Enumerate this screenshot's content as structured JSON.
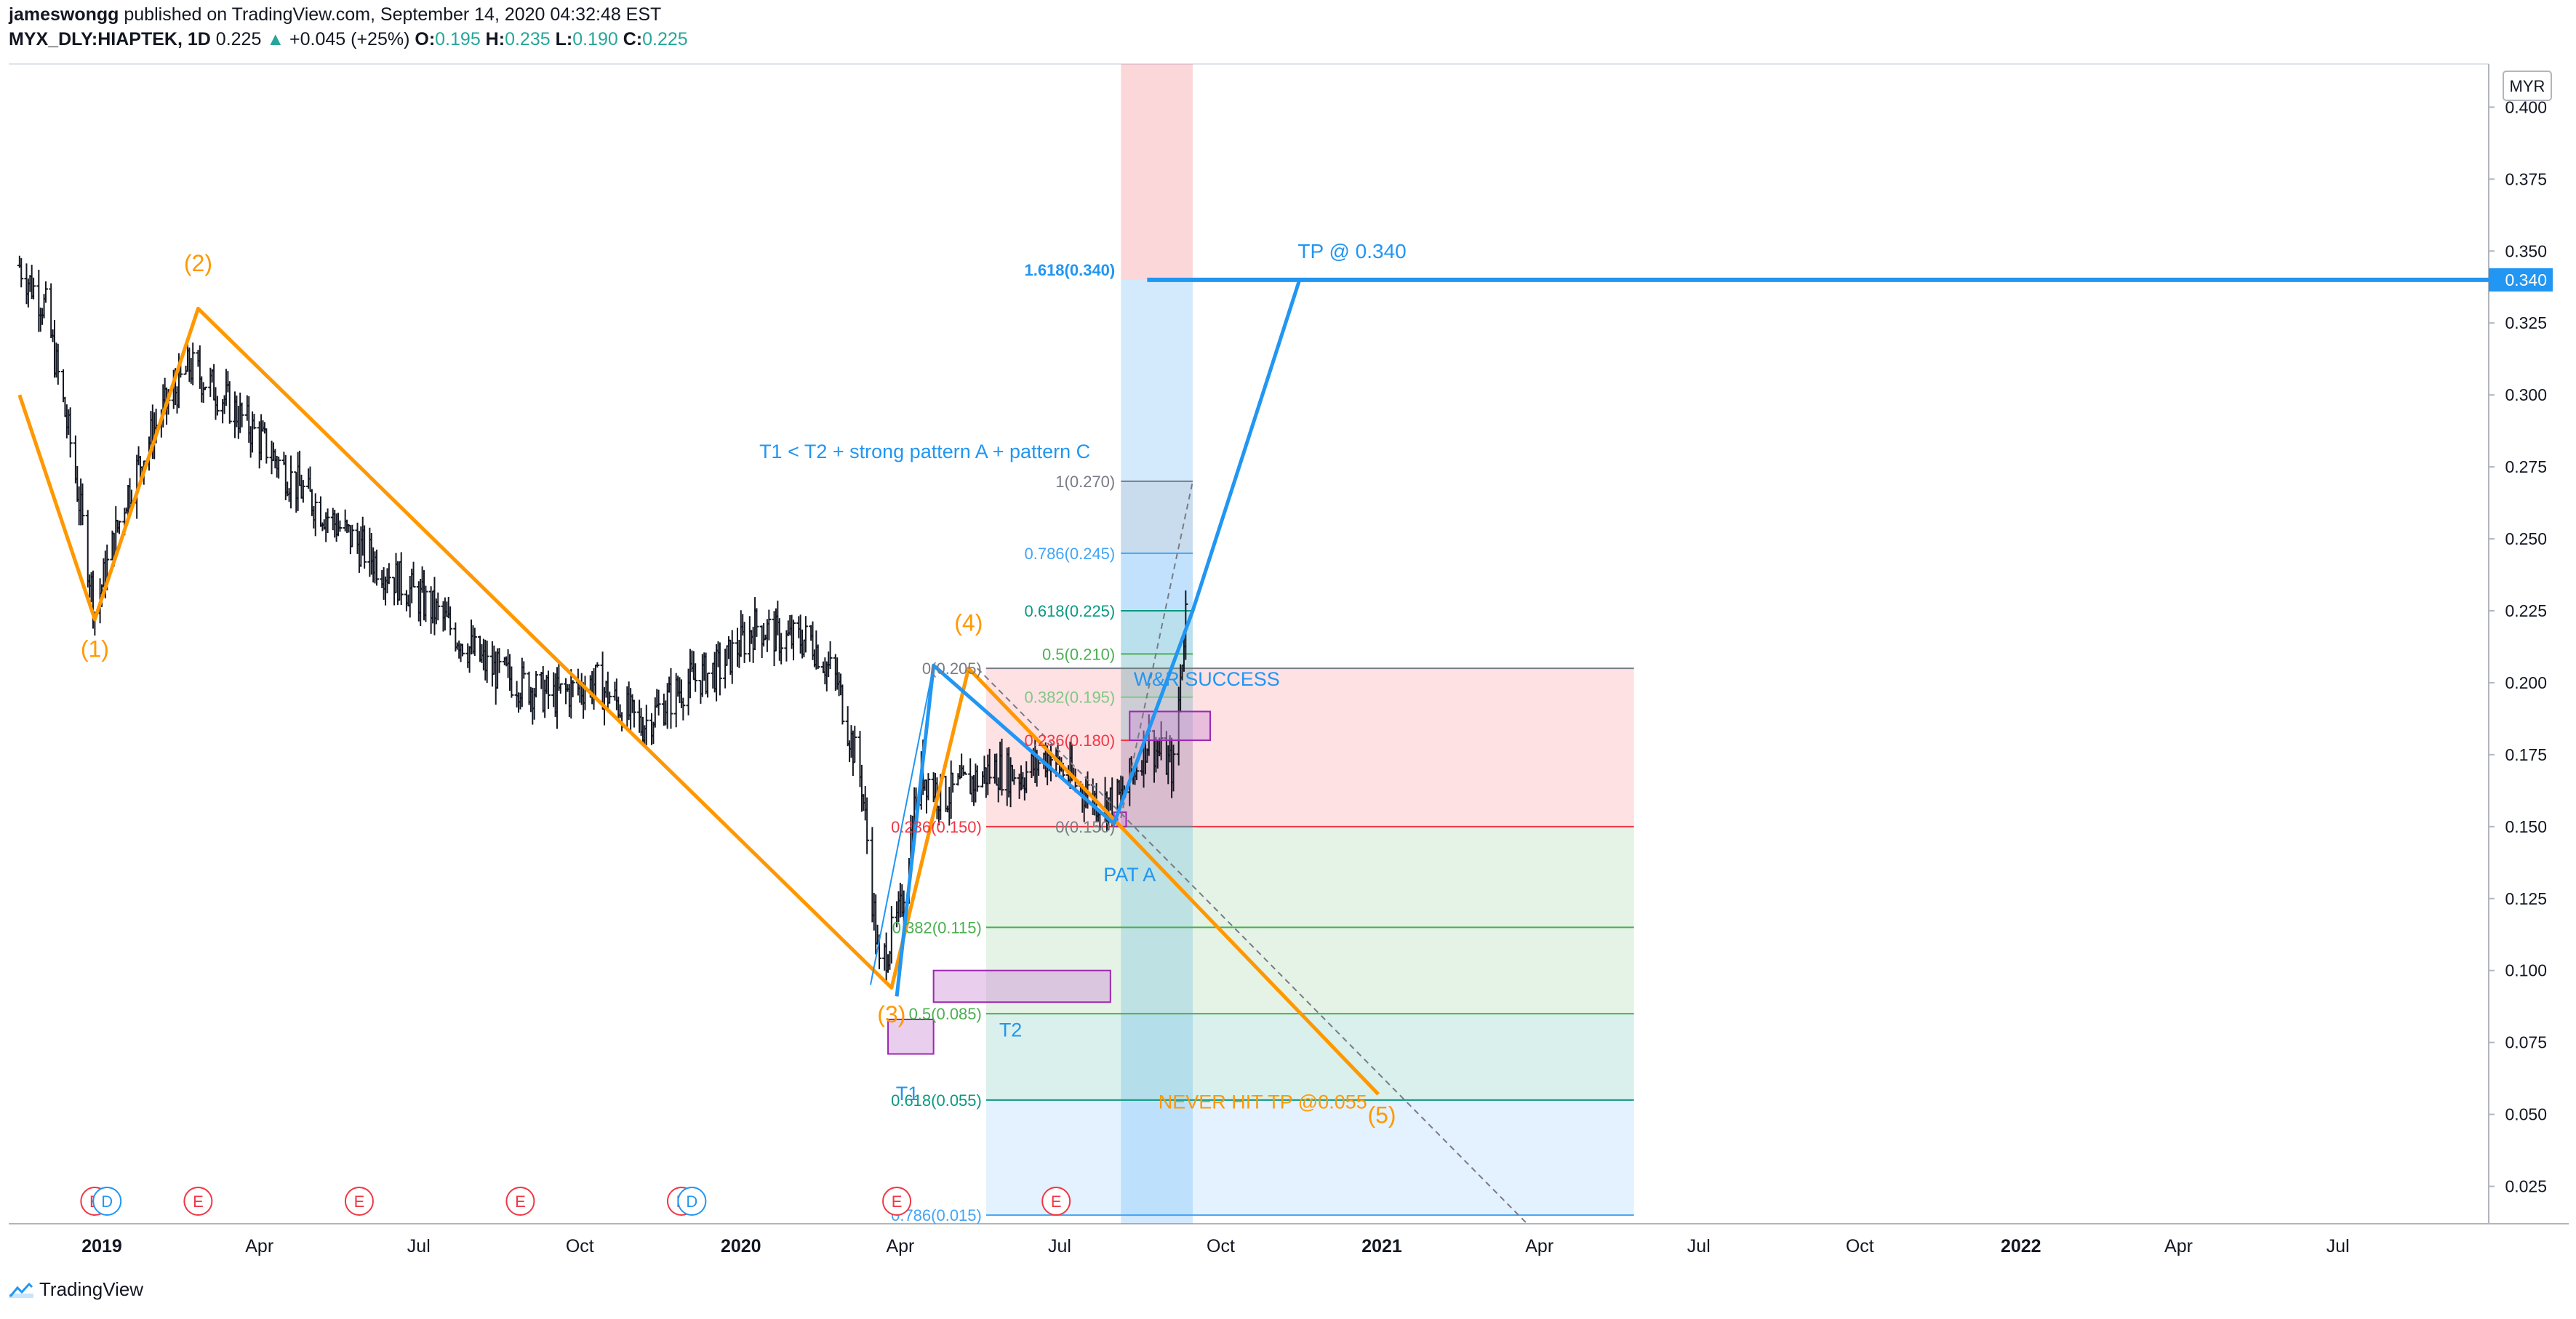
{
  "header": {
    "author": "jameswongg",
    "published_text": "published on TradingView.com, September 14, 2020 04:32:48 EST",
    "symbol": "MYX_DLY:HIAPTEK, 1D",
    "last": "0.225",
    "arrow": "▲",
    "change": "+0.045 (+25%)",
    "o_label": "O:",
    "o": "0.195",
    "h_label": "H:",
    "h": "0.235",
    "l_label": "L:",
    "l": "0.190",
    "c_label": "C:",
    "c": "0.225"
  },
  "currency": "MYR",
  "footer": {
    "brand": "TradingView"
  },
  "colors": {
    "orange": "#ff9800",
    "blue": "#2196f3",
    "candle": "#131722",
    "fib_red": "#f23645",
    "fib_green": "#4caf50",
    "fib_teal": "#089981",
    "fib_grey": "#787b86",
    "fib_lightblue": "#42a5f5",
    "purple": "#ce93d8"
  },
  "chart_data": {
    "type": "candlestick",
    "ylim": [
      0.012,
      0.415
    ],
    "price_axis": {
      "ticks": [
        "0.400",
        "0.375",
        "0.350",
        "0.325",
        "0.300",
        "0.275",
        "0.250",
        "0.225",
        "0.200",
        "0.175",
        "0.150",
        "0.125",
        "0.100",
        "0.075",
        "0.050",
        "0.025"
      ],
      "current_label": "0.340"
    },
    "time_axis": {
      "ticks": [
        {
          "label": "2019",
          "bold": true,
          "t": "2019-01-01"
        },
        {
          "label": "Apr",
          "bold": false,
          "t": "2019-04-01"
        },
        {
          "label": "Jul",
          "bold": false,
          "t": "2019-07-01"
        },
        {
          "label": "Oct",
          "bold": false,
          "t": "2019-10-01"
        },
        {
          "label": "2020",
          "bold": true,
          "t": "2020-01-01"
        },
        {
          "label": "Apr",
          "bold": false,
          "t": "2020-04-01"
        },
        {
          "label": "Jul",
          "bold": false,
          "t": "2020-07-01"
        },
        {
          "label": "Oct",
          "bold": false,
          "t": "2020-10-01"
        },
        {
          "label": "2021",
          "bold": true,
          "t": "2021-01-01"
        },
        {
          "label": "Apr",
          "bold": false,
          "t": "2021-04-01"
        },
        {
          "label": "Jul",
          "bold": false,
          "t": "2021-07-01"
        },
        {
          "label": "Oct",
          "bold": false,
          "t": "2021-10-01"
        },
        {
          "label": "2022",
          "bold": true,
          "t": "2022-01-01"
        },
        {
          "label": "Apr",
          "bold": false,
          "t": "2022-04-01"
        },
        {
          "label": "Jul",
          "bold": false,
          "t": "2022-07-01"
        }
      ]
    },
    "price_path": [
      [
        "2018-11-15",
        0.345
      ],
      [
        "2018-11-30",
        0.33
      ],
      [
        "2018-12-15",
        0.28
      ],
      [
        "2018-12-28",
        0.225
      ],
      [
        "2019-01-15",
        0.265
      ],
      [
        "2019-02-01",
        0.29
      ],
      [
        "2019-02-20",
        0.31
      ],
      [
        "2019-03-10",
        0.3
      ],
      [
        "2019-04-01",
        0.285
      ],
      [
        "2019-04-20",
        0.27
      ],
      [
        "2019-05-15",
        0.255
      ],
      [
        "2019-06-10",
        0.24
      ],
      [
        "2019-07-10",
        0.225
      ],
      [
        "2019-08-10",
        0.205
      ],
      [
        "2019-09-15",
        0.195
      ],
      [
        "2019-10-10",
        0.2
      ],
      [
        "2019-11-05",
        0.185
      ],
      [
        "2019-12-01",
        0.2
      ],
      [
        "2019-12-20",
        0.205
      ],
      [
        "2020-01-10",
        0.22
      ],
      [
        "2020-01-25",
        0.215
      ],
      [
        "2020-02-10",
        0.215
      ],
      [
        "2020-02-25",
        0.2
      ],
      [
        "2020-03-10",
        0.165
      ],
      [
        "2020-03-20",
        0.1
      ],
      [
        "2020-04-01",
        0.12
      ],
      [
        "2020-04-12",
        0.17
      ],
      [
        "2020-04-25",
        0.16
      ],
      [
        "2020-05-10",
        0.165
      ],
      [
        "2020-05-25",
        0.17
      ],
      [
        "2020-06-10",
        0.168
      ],
      [
        "2020-06-25",
        0.175
      ],
      [
        "2020-07-10",
        0.165
      ],
      [
        "2020-07-25",
        0.158
      ],
      [
        "2020-08-05",
        0.16
      ],
      [
        "2020-08-20",
        0.18
      ],
      [
        "2020-09-04",
        0.17
      ],
      [
        "2020-09-11",
        0.225
      ]
    ],
    "earnings_events": [
      {
        "t": "2018-12-28",
        "label": "E"
      },
      {
        "t": "2019-02-25",
        "label": "E"
      },
      {
        "t": "2019-05-28",
        "label": "E"
      },
      {
        "t": "2019-08-28",
        "label": "E"
      },
      {
        "t": "2019-11-28",
        "label": "E"
      },
      {
        "t": "2020-03-30",
        "label": "E"
      },
      {
        "t": "2020-06-29",
        "label": "E"
      }
    ],
    "dividend_events": [
      {
        "t": "2019-01-04",
        "label": "D"
      },
      {
        "t": "2019-12-04",
        "label": "D"
      }
    ],
    "elliott_wave": {
      "points": [
        [
          "2018-11-15",
          0.3
        ],
        [
          "2018-12-28",
          0.222
        ],
        [
          "2019-02-25",
          0.33
        ],
        [
          "2020-03-27",
          0.094
        ],
        [
          "2020-05-10",
          0.205
        ],
        [
          "2020-12-30",
          0.057
        ]
      ],
      "labels": [
        {
          "text": "(1)",
          "t": "2018-12-28",
          "p": 0.209
        },
        {
          "text": "(2)",
          "t": "2019-02-25",
          "p": 0.343
        },
        {
          "text": "(3)",
          "t": "2020-03-27",
          "p": 0.082
        },
        {
          "text": "(4)",
          "t": "2020-05-10",
          "p": 0.218
        },
        {
          "text": "(5)",
          "t": "2021-01-01",
          "p": 0.047
        }
      ]
    },
    "blue_path": [
      [
        "2020-03-30",
        0.091
      ],
      [
        "2020-04-20",
        0.206
      ],
      [
        "2020-08-01",
        0.151
      ],
      [
        "2020-09-15",
        0.225
      ],
      [
        "2020-11-15",
        0.34
      ]
    ],
    "blue_thin_line": [
      [
        "2020-03-15",
        0.095
      ],
      [
        "2020-04-20",
        0.206
      ]
    ],
    "gray_dashed": [
      [
        "2020-05-15",
        0.205
      ],
      [
        "2021-03-25",
        0.012
      ]
    ],
    "gray_dashed2": [
      [
        "2020-08-05",
        0.153
      ],
      [
        "2020-09-15",
        0.27
      ]
    ],
    "tp_line": {
      "price": 0.34,
      "t_start": "2020-08-20",
      "label": "TP @ 0.340",
      "label_t": "2020-12-15",
      "fib_label": "1.618(0.340)"
    },
    "projection_box": {
      "t0": "2020-08-05",
      "t1": "2020-09-15",
      "top": 0.415,
      "entry": 0.34,
      "bottom": 0.012
    },
    "fib_upper": {
      "t0": "2020-08-05",
      "t1": "2020-09-15",
      "levels": [
        {
          "text": "1(0.270)",
          "p": 0.27,
          "color": "#787b86"
        },
        {
          "text": "0.786(0.245)",
          "p": 0.245,
          "color": "#42a5f5"
        },
        {
          "text": "0.618(0.225)",
          "p": 0.225,
          "color": "#089981"
        },
        {
          "text": "0.5(0.210)",
          "p": 0.21,
          "color": "#4caf50"
        },
        {
          "text": "0.382(0.195)",
          "p": 0.195,
          "color": "#81c784"
        },
        {
          "text": "0.236(0.180)",
          "p": 0.18,
          "color": "#f23645"
        },
        {
          "text": "0(0.150)",
          "p": 0.15,
          "color": "#787b86"
        }
      ]
    },
    "fib_lower": {
      "t0": "2020-05-20",
      "t1": "2021-05-25",
      "levels": [
        {
          "text": "0(0.205)",
          "p": 0.205,
          "color": "#787b86"
        },
        {
          "text": "0.236(0.150)",
          "p": 0.15,
          "color": "#f23645"
        },
        {
          "text": "0.382(0.115)",
          "p": 0.115,
          "color": "#4caf50"
        },
        {
          "text": "0.5(0.085)",
          "p": 0.085,
          "color": "#4caf50"
        },
        {
          "text": "0.618(0.055)",
          "p": 0.055,
          "color": "#089981"
        },
        {
          "text": "0.786(0.015)",
          "p": 0.015,
          "color": "#42a5f5"
        }
      ]
    },
    "purple_boxes": [
      {
        "t0": "2020-03-25",
        "t1": "2020-04-20",
        "p0": 0.083,
        "p1": 0.071
      },
      {
        "t0": "2020-04-20",
        "t1": "2020-07-30",
        "p0": 0.1,
        "p1": 0.089
      },
      {
        "t0": "2020-08-10",
        "t1": "2020-09-25",
        "p0": 0.19,
        "p1": 0.18
      },
      {
        "t0": "2020-08-01",
        "t1": "2020-08-08",
        "p0": 0.155,
        "p1": 0.15
      }
    ],
    "annotations": [
      {
        "text": "T1 < T2 + strong pattern A + pattern C",
        "t": "2020-04-15",
        "p": 0.278,
        "color": "#2196f3"
      },
      {
        "text": "W&R SUCCESS",
        "t": "2020-09-23",
        "p": 0.199,
        "color": "#2196f3"
      },
      {
        "text": "PAT A",
        "t": "2020-08-10",
        "p": 0.131,
        "color": "#2196f3"
      },
      {
        "text": "T2",
        "t": "2020-06-03",
        "p": 0.077,
        "color": "#2196f3"
      },
      {
        "text": "T1",
        "t": "2020-04-05",
        "p": 0.055,
        "color": "#2196f3"
      },
      {
        "text": "NEVER HIT TP @0.055",
        "t": "2020-10-25",
        "p": 0.052,
        "color": "#ff9800"
      }
    ]
  }
}
